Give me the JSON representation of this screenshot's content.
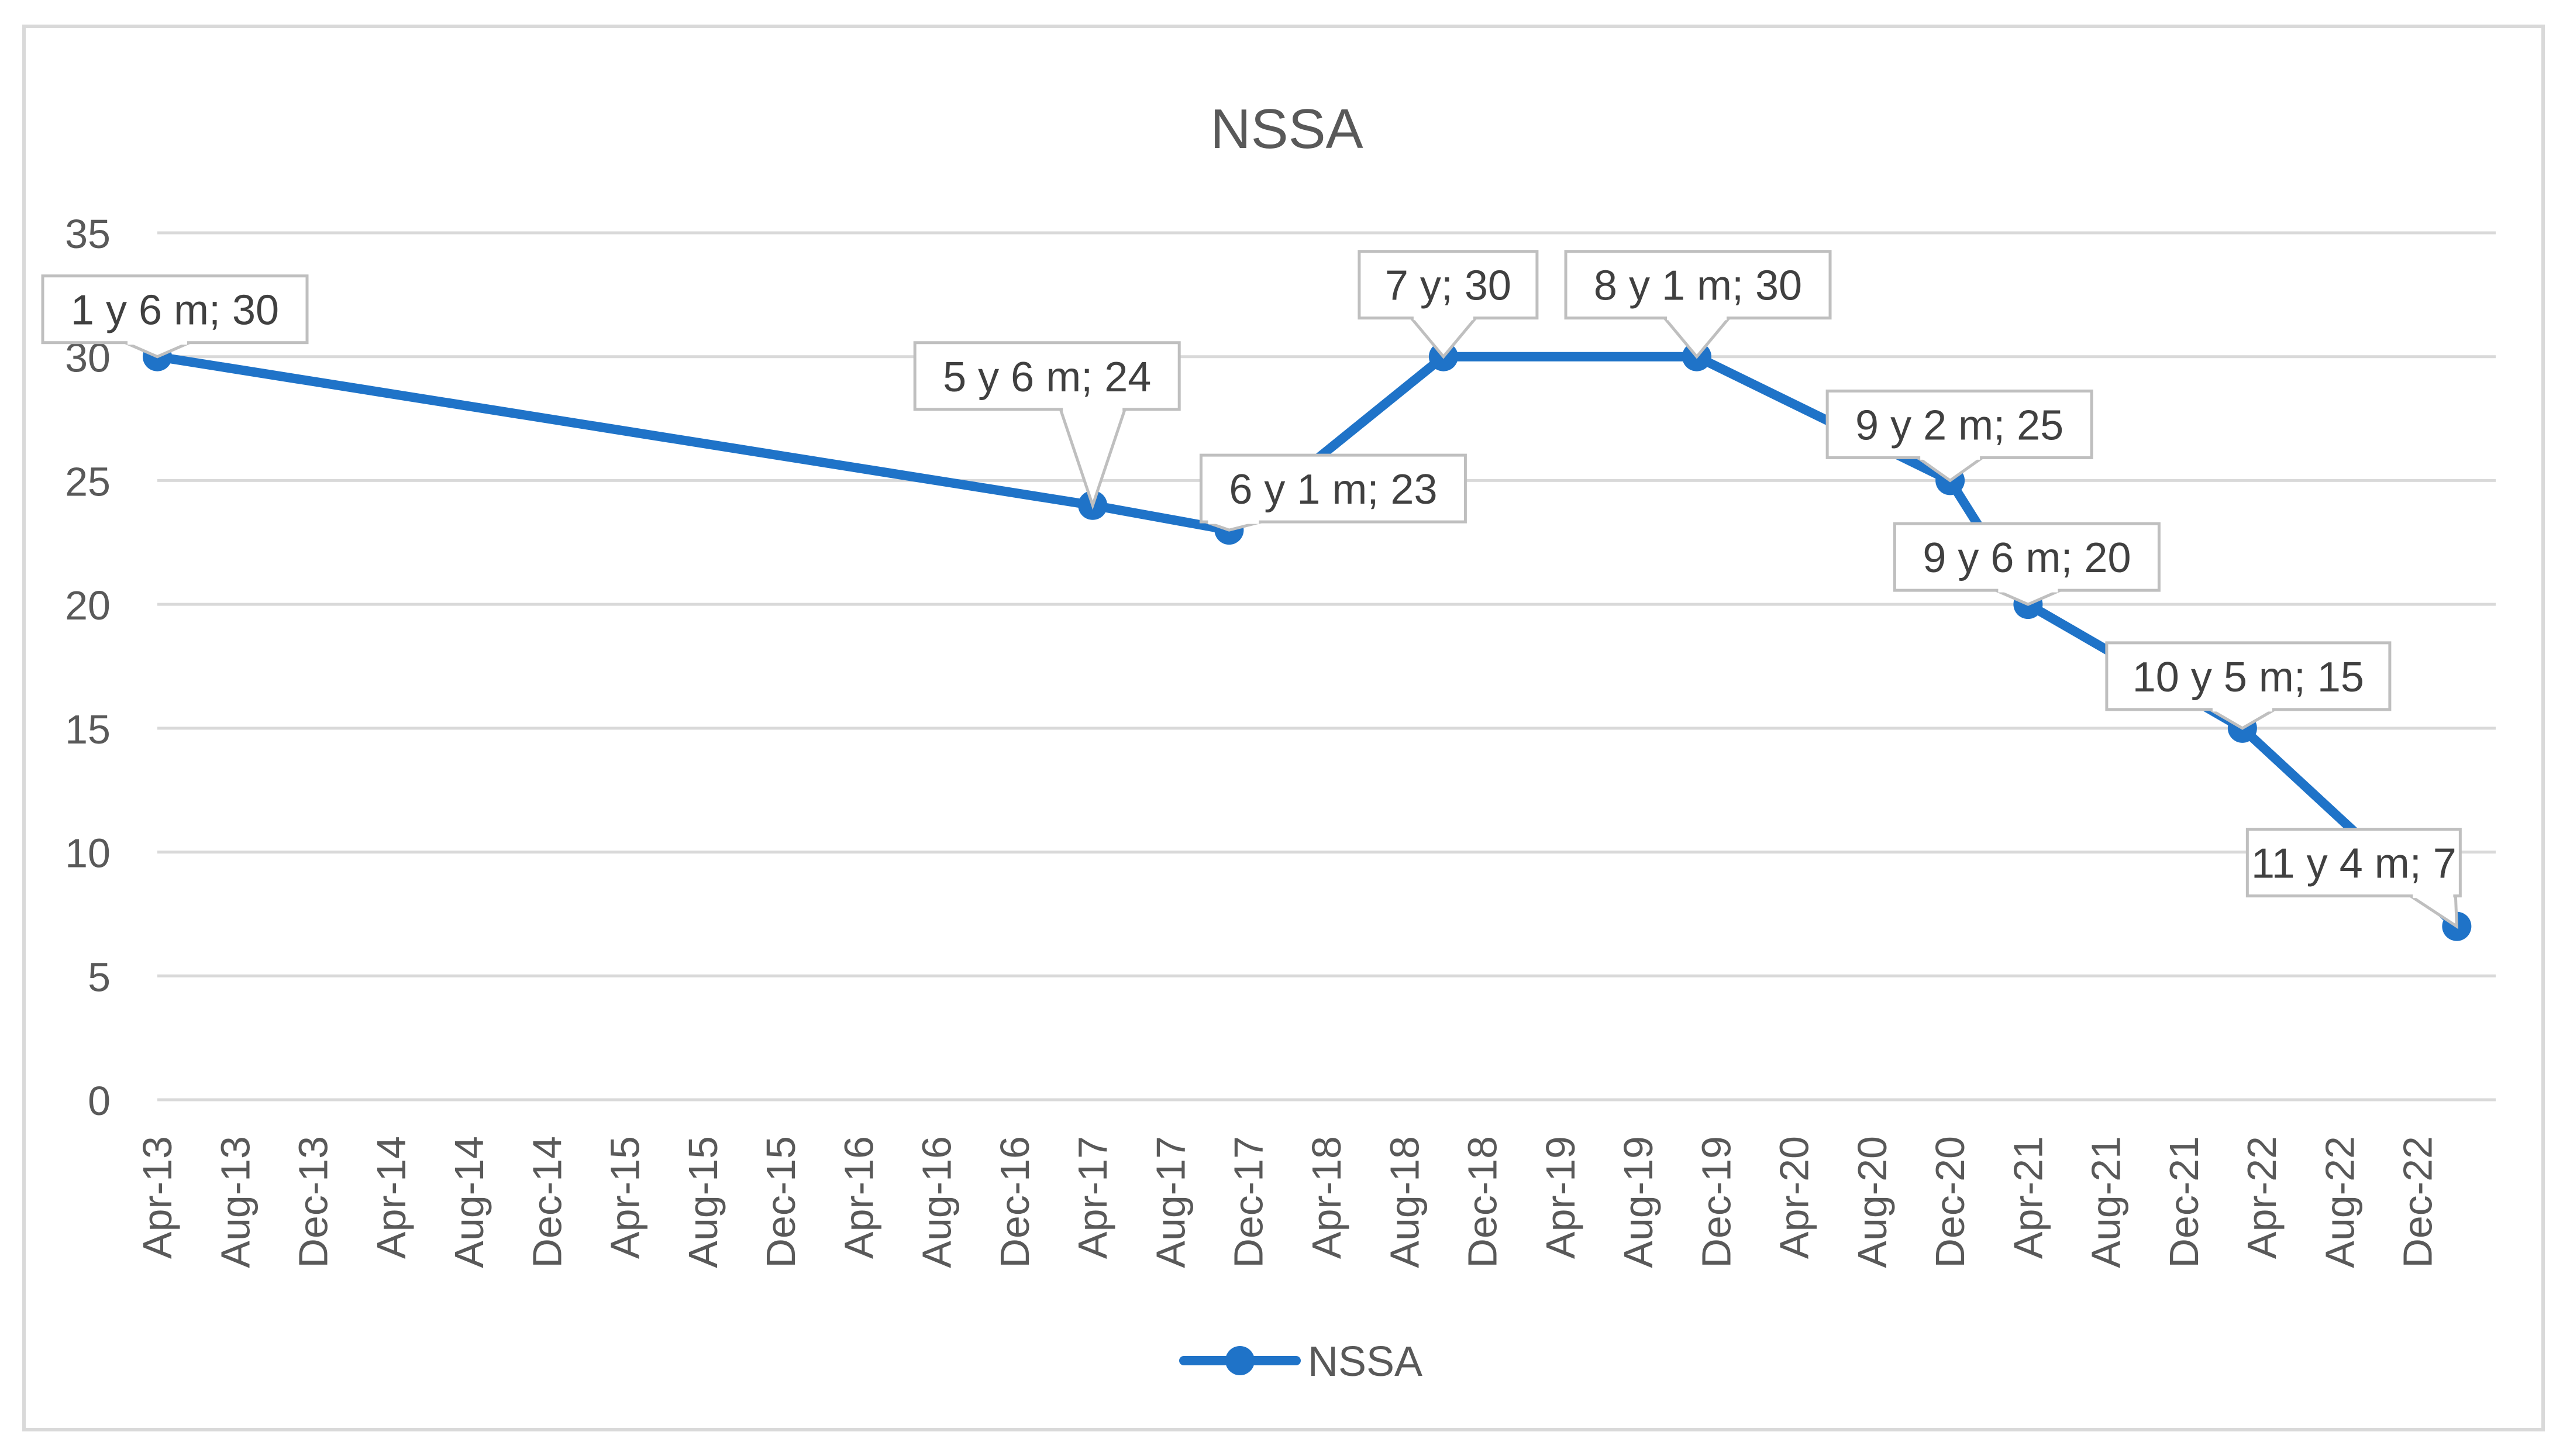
{
  "chart_data": {
    "type": "line",
    "title": "NSSA",
    "xlabel": "",
    "ylabel": "",
    "ylim": [
      0,
      35
    ],
    "y_ticks": [
      "0",
      "5",
      "10",
      "15",
      "20",
      "25",
      "30",
      "35"
    ],
    "x_range": [
      "2013-04",
      "2023-04"
    ],
    "x_ticks": [
      "Apr-13",
      "Aug-13",
      "Dec-13",
      "Apr-14",
      "Aug-14",
      "Dec-14",
      "Apr-15",
      "Aug-15",
      "Dec-15",
      "Apr-16",
      "Aug-16",
      "Dec-16",
      "Apr-17",
      "Aug-17",
      "Dec-17",
      "Apr-18",
      "Aug-18",
      "Dec-18",
      "Apr-19",
      "Aug-19",
      "Dec-19",
      "Apr-20",
      "Aug-20",
      "Dec-20",
      "Apr-21",
      "Aug-21",
      "Dec-21",
      "Apr-22",
      "Aug-22",
      "Dec-22"
    ],
    "grid": true,
    "legend_position": "bottom",
    "color": "#1f73c8",
    "series": [
      {
        "name": "NSSA",
        "points": [
          {
            "x": "2013-04",
            "y": 30,
            "label": "1 y 6 m; 30"
          },
          {
            "x": "2017-04",
            "y": 24,
            "label": "5 y 6 m; 24"
          },
          {
            "x": "2017-11",
            "y": 23,
            "label": "6 y 1 m; 23"
          },
          {
            "x": "2018-10",
            "y": 30,
            "label": "7 y; 30"
          },
          {
            "x": "2019-11",
            "y": 30,
            "label": "8 y 1 m; 30"
          },
          {
            "x": "2020-12",
            "y": 25,
            "label": "9 y 2 m; 25"
          },
          {
            "x": "2021-04",
            "y": 20,
            "label": "9 y 6 m; 20"
          },
          {
            "x": "2022-03",
            "y": 15,
            "label": "10 y 5 m; 15"
          },
          {
            "x": "2023-02",
            "y": 7,
            "label": "11 y 4 m; 7"
          }
        ]
      }
    ]
  }
}
